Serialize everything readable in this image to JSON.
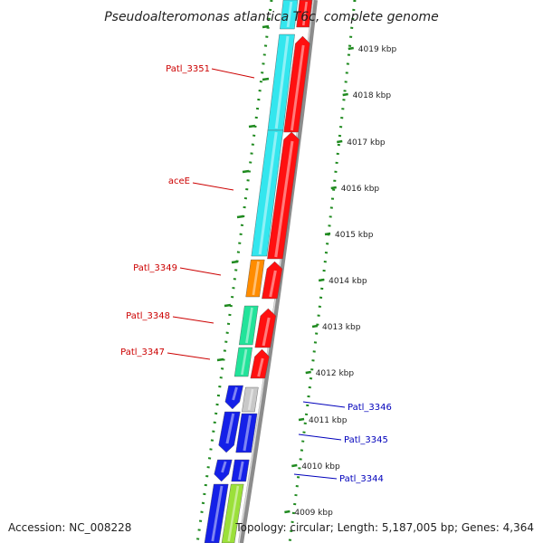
{
  "title": "Pseudoalteromonas atlantica T6c, complete genome",
  "footer": {
    "accession": "Accession: NC_008228",
    "summary": "Topology: circular; Length: 5,187,005 bp; Genes: 4,364"
  },
  "colors": {
    "cyan": "#33e6ee",
    "red": "#ff1010",
    "orange": "#ff8c00",
    "green": "#22e39a",
    "blue": "#1420e8",
    "gray": "#c8c8c8",
    "lime": "#9be03a",
    "label_red": "#cc0000",
    "label_blue": "#0000bb",
    "backbone": "#8c8c8c",
    "gc_dots": "#1f8a1f"
  },
  "scale": {
    "unit": "kbp",
    "ticks": [
      {
        "label": "4019 kbp"
      },
      {
        "label": "4018 kbp"
      },
      {
        "label": "4017 kbp"
      },
      {
        "label": "4016 kbp"
      },
      {
        "label": "4015 kbp"
      },
      {
        "label": "4014 kbp"
      },
      {
        "label": "4013 kbp"
      },
      {
        "label": "4012 kbp"
      },
      {
        "label": "4011 kbp"
      },
      {
        "label": "4010 kbp"
      },
      {
        "label": "4009 kbp"
      }
    ]
  },
  "gene_labels": [
    {
      "text": "Patl_3351",
      "color": "label_red"
    },
    {
      "text": "aceE",
      "color": "label_red"
    },
    {
      "text": "Patl_3349",
      "color": "label_red"
    },
    {
      "text": "Patl_3348",
      "color": "label_red"
    },
    {
      "text": "Patl_3347",
      "color": "label_red"
    },
    {
      "text": "Patl_3346",
      "color": "label_blue"
    },
    {
      "text": "Patl_3345",
      "color": "label_blue"
    },
    {
      "text": "Patl_3344",
      "color": "label_blue"
    }
  ]
}
